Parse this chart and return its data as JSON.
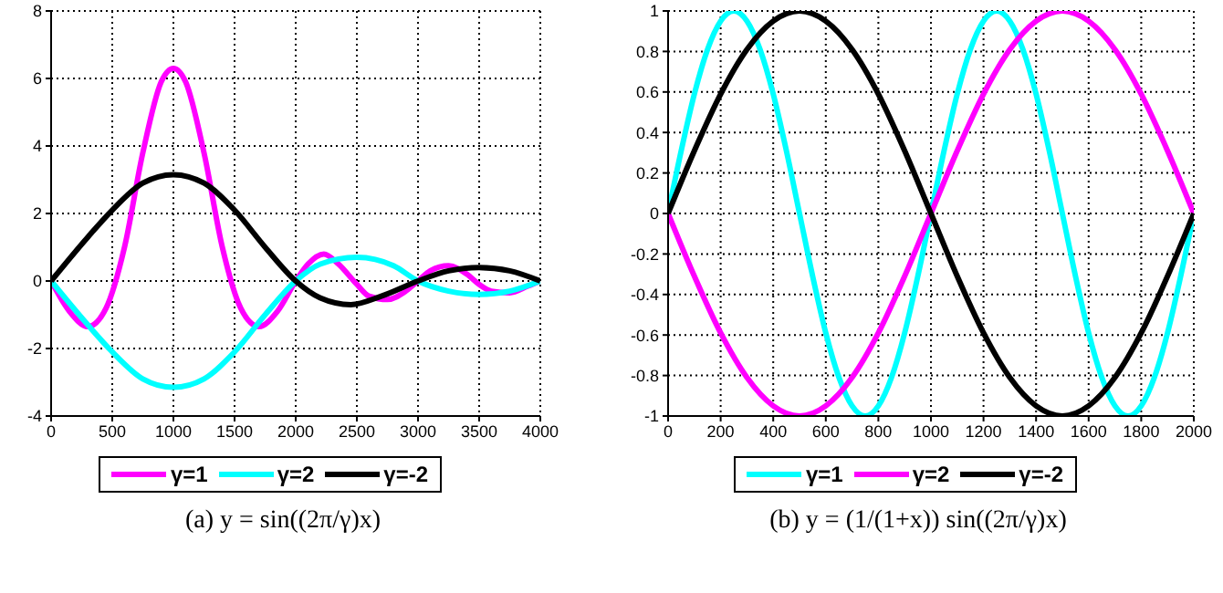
{
  "chart_data": [
    {
      "type": "line",
      "xlim": [
        0,
        4000
      ],
      "xticks": [
        0,
        500,
        1000,
        1500,
        2000,
        2500,
        3000,
        3500,
        4000
      ],
      "ylim": [
        -4,
        8
      ],
      "yticks": [
        -4,
        -2,
        0,
        2,
        4,
        6,
        8
      ],
      "grid": true,
      "legend": "bottom",
      "marker": "none",
      "line_style": "solid",
      "annotations": [
        "(a) y = sin((2π/γ)x)"
      ],
      "series": [
        {
          "name": "γ=1",
          "color": "#ff00ff",
          "x": [
            0,
            150,
            300,
            450,
            600,
            750,
            900,
            1000,
            1100,
            1250,
            1400,
            1550,
            1700,
            1850,
            2000,
            2100,
            2230,
            2350,
            2500,
            2600,
            2750,
            2900,
            3000,
            3100,
            3250,
            3400,
            3500,
            3600,
            3750,
            3900,
            4000
          ],
          "values": [
            0,
            -0.9,
            -1.35,
            -0.8,
            1,
            3.8,
            5.9,
            6.3,
            5.9,
            3.8,
            1,
            -0.8,
            -1.35,
            -0.9,
            0,
            0.5,
            0.8,
            0.5,
            -0.1,
            -0.45,
            -0.55,
            -0.3,
            0,
            0.3,
            0.45,
            0.2,
            -0.1,
            -0.3,
            -0.35,
            -0.15,
            0
          ]
        },
        {
          "name": "γ=2",
          "color": "#00ffff",
          "x": [
            0,
            300,
            500,
            750,
            1000,
            1250,
            1500,
            1750,
            2000,
            2200,
            2500,
            2800,
            3000,
            3250,
            3500,
            3750,
            4000
          ],
          "values": [
            0,
            -1.3,
            -2.1,
            -2.9,
            -3.15,
            -2.9,
            -2.1,
            -1,
            0,
            0.5,
            0.7,
            0.45,
            0,
            -0.3,
            -0.4,
            -0.3,
            0
          ]
        },
        {
          "name": "γ=-2",
          "color": "#000000",
          "x": [
            0,
            300,
            500,
            750,
            1000,
            1250,
            1500,
            1750,
            2000,
            2200,
            2450,
            2700,
            3000,
            3250,
            3500,
            3750,
            4000
          ],
          "values": [
            0,
            1.3,
            2.1,
            2.9,
            3.15,
            2.9,
            2.1,
            1,
            0,
            -0.5,
            -0.7,
            -0.45,
            0,
            0.3,
            0.4,
            0.3,
            0
          ]
        }
      ]
    },
    {
      "type": "line",
      "xlim": [
        0,
        2000
      ],
      "xticks": [
        0,
        200,
        400,
        600,
        800,
        1000,
        1200,
        1400,
        1600,
        1800,
        2000
      ],
      "ylim": [
        -1,
        1
      ],
      "yticks": [
        -1,
        -0.8,
        -0.6,
        -0.4,
        -0.2,
        0,
        0.2,
        0.4,
        0.6,
        0.8,
        1
      ],
      "grid": true,
      "legend": "bottom",
      "marker": "none",
      "line_style": "solid",
      "annotations": [
        "(b) y = (1/(1+x)) sin((2π/γ)x)"
      ],
      "series": [
        {
          "name": "γ=1",
          "color": "#00ffff",
          "x": [
            0,
            50,
            100,
            150,
            200,
            250,
            300,
            350,
            400,
            450,
            500,
            550,
            600,
            650,
            700,
            750,
            800,
            850,
            900,
            950,
            1000,
            1050,
            1100,
            1150,
            1200,
            1250,
            1300,
            1350,
            1400,
            1450,
            1500,
            1550,
            1600,
            1650,
            1700,
            1750,
            1800,
            1850,
            1900,
            1950,
            2000
          ],
          "values": [
            0,
            0.31,
            0.59,
            0.81,
            0.95,
            1,
            0.95,
            0.81,
            0.59,
            0.31,
            0,
            -0.31,
            -0.59,
            -0.81,
            -0.95,
            -1,
            -0.95,
            -0.81,
            -0.59,
            -0.31,
            0,
            0.31,
            0.59,
            0.81,
            0.95,
            1,
            0.95,
            0.81,
            0.59,
            0.31,
            0,
            -0.31,
            -0.59,
            -0.81,
            -0.95,
            -1,
            -0.95,
            -0.81,
            -0.59,
            -0.31,
            0
          ]
        },
        {
          "name": "γ=2",
          "color": "#ff00ff",
          "x": [
            0,
            100,
            200,
            300,
            400,
            500,
            600,
            700,
            800,
            900,
            1000,
            1100,
            1200,
            1300,
            1400,
            1500,
            1600,
            1700,
            1800,
            1900,
            2000
          ],
          "values": [
            0,
            -0.31,
            -0.59,
            -0.81,
            -0.95,
            -1,
            -0.95,
            -0.81,
            -0.59,
            -0.31,
            0,
            0.31,
            0.59,
            0.81,
            0.95,
            1,
            0.95,
            0.81,
            0.59,
            0.31,
            0
          ]
        },
        {
          "name": "γ=-2",
          "color": "#000000",
          "x": [
            0,
            100,
            200,
            300,
            400,
            500,
            600,
            700,
            800,
            900,
            1000,
            1100,
            1200,
            1300,
            1400,
            1500,
            1600,
            1700,
            1800,
            1900,
            2000
          ],
          "values": [
            0,
            0.31,
            0.59,
            0.81,
            0.95,
            1,
            0.95,
            0.81,
            0.59,
            0.31,
            0,
            -0.31,
            -0.59,
            -0.81,
            -0.95,
            -1,
            -0.95,
            -0.81,
            -0.59,
            -0.31,
            0
          ]
        }
      ]
    }
  ]
}
